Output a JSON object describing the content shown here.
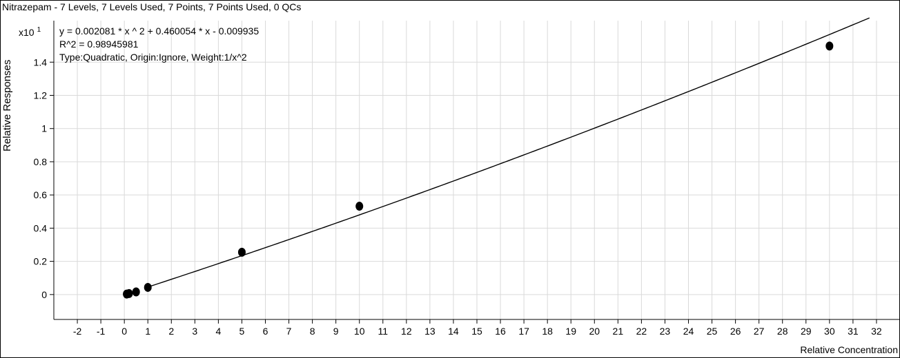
{
  "chart_data": {
    "type": "scatter",
    "title": "Nitrazepam - 7 Levels, 7 Levels Used, 7 Points, 7 Points Used, 0 QCs",
    "equation": "y = 0.002081 * x ^ 2  + 0.460054 * x  - 0.009935",
    "r_squared": "R^2 = 0.98945981",
    "fit_info": "Type:Quadratic, Origin:Ignore, Weight:1/x^2",
    "y_multiplier": "x10",
    "y_exponent": "1",
    "xlabel": "Relative Concentration",
    "ylabel": "Relative Responses",
    "xlim": [
      -3,
      33
    ],
    "ylim": [
      -0.15,
      1.65
    ],
    "x_ticks": [
      -2,
      -1,
      0,
      1,
      2,
      3,
      4,
      5,
      6,
      7,
      8,
      9,
      10,
      11,
      12,
      13,
      14,
      15,
      16,
      17,
      18,
      19,
      20,
      21,
      22,
      23,
      24,
      25,
      26,
      27,
      28,
      29,
      30,
      31,
      32
    ],
    "y_ticks": [
      0,
      0.2,
      0.4,
      0.6,
      0.8,
      1,
      1.2,
      1.4
    ],
    "y_tick_labels": [
      "0",
      "0.2",
      "0.4",
      "0.6",
      "0.8",
      "1",
      "1.2",
      "1.4"
    ],
    "grid": true,
    "fit_coefficients": {
      "a": 0.002081,
      "b": 0.460054,
      "c": -0.009935,
      "scale": 10
    },
    "fit_x_range": [
      1,
      31.7
    ],
    "points": [
      {
        "x": 0.1,
        "y": 0.003
      },
      {
        "x": 0.2,
        "y": 0.006
      },
      {
        "x": 0.5,
        "y": 0.016
      },
      {
        "x": 1,
        "y": 0.043
      },
      {
        "x": 5,
        "y": 0.255
      },
      {
        "x": 10,
        "y": 0.532
      },
      {
        "x": 30,
        "y": 1.497
      }
    ]
  }
}
